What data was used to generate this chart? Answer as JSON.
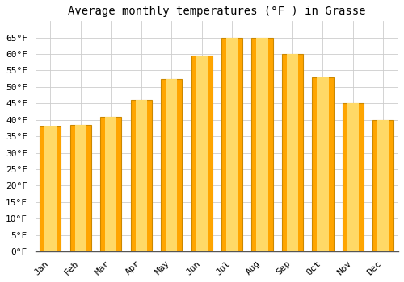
{
  "title": "Average monthly temperatures (°F ) in Grasse",
  "months": [
    "Jan",
    "Feb",
    "Mar",
    "Apr",
    "May",
    "Jun",
    "Jul",
    "Aug",
    "Sep",
    "Oct",
    "Nov",
    "Dec"
  ],
  "values": [
    38,
    38.5,
    41,
    46,
    52.5,
    59.5,
    65,
    65,
    60,
    53,
    45,
    40
  ],
  "bar_color_center": "#FFD966",
  "bar_color_edge": "#FFA500",
  "background_color": "#FFFFFF",
  "plot_bg_color": "#FFFFFF",
  "grid_color": "#CCCCCC",
  "ylim": [
    0,
    70
  ],
  "yticks": [
    0,
    5,
    10,
    15,
    20,
    25,
    30,
    35,
    40,
    45,
    50,
    55,
    60,
    65
  ],
  "title_fontsize": 10,
  "tick_fontsize": 8,
  "font_family": "monospace",
  "bar_width": 0.7
}
